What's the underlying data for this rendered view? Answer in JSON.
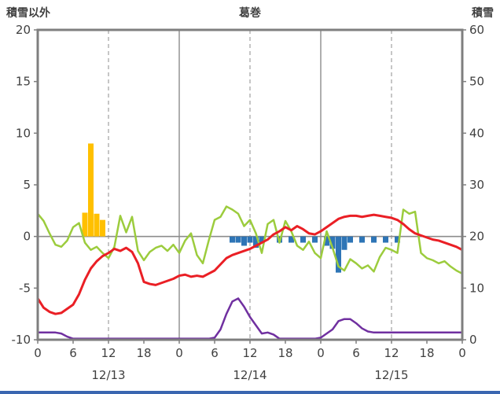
{
  "header": {
    "left_caption": "積雪以外",
    "title": "葛巻",
    "right_caption": "積雪"
  },
  "colors": {
    "frame": "#7f7f7f",
    "grid": "#8c8c8c",
    "text": "#404040",
    "red": "#ea1f25",
    "green": "#9ccc3d",
    "yellow": "#ffc000",
    "blue": "#2e75b6",
    "purple": "#7030a0",
    "bottom_strip": "#3a66b0"
  },
  "chart_data": {
    "type": "line",
    "title": "葛巻",
    "x_hours_span": 72,
    "hour_ticks": [
      {
        "t": 0,
        "label": "0"
      },
      {
        "t": 6,
        "label": "6"
      },
      {
        "t": 12,
        "label": "12"
      },
      {
        "t": 18,
        "label": "18"
      },
      {
        "t": 24,
        "label": "0"
      },
      {
        "t": 30,
        "label": "6"
      },
      {
        "t": 36,
        "label": "12"
      },
      {
        "t": 42,
        "label": "18"
      },
      {
        "t": 48,
        "label": "0"
      },
      {
        "t": 54,
        "label": "6"
      },
      {
        "t": 60,
        "label": "12"
      },
      {
        "t": 66,
        "label": "18"
      },
      {
        "t": 72,
        "label": "0"
      }
    ],
    "date_labels": [
      {
        "t": 12,
        "label": "12/13"
      },
      {
        "t": 36,
        "label": "12/14"
      },
      {
        "t": 60,
        "label": "12/15"
      }
    ],
    "left_axis": {
      "caption": "積雪以外",
      "min": -10,
      "max": 20,
      "ticks": [
        20,
        15,
        10,
        5,
        0,
        -5,
        -10
      ]
    },
    "right_axis": {
      "caption": "積雪",
      "min": 0,
      "max": 60,
      "ticks": [
        60,
        50,
        40,
        30,
        20,
        10,
        0
      ]
    },
    "gridlines": {
      "vertical_solid_hours": [
        24,
        48
      ],
      "vertical_dashed_hours": [
        12,
        36,
        60
      ],
      "horizontal_solid_values": [
        0
      ]
    },
    "series": [
      {
        "name": "yellow-bars",
        "type": "bar",
        "color_key": "yellow",
        "axis": "left",
        "points": [
          [
            8,
            2.3
          ],
          [
            9,
            9.0
          ],
          [
            10,
            2.2
          ],
          [
            11,
            1.6
          ]
        ]
      },
      {
        "name": "blue-bars",
        "type": "bar",
        "color_key": "blue",
        "axis": "left",
        "points": [
          [
            33,
            -0.6
          ],
          [
            34,
            -0.6
          ],
          [
            35,
            -0.9
          ],
          [
            36,
            -0.6
          ],
          [
            37,
            -1.1
          ],
          [
            38,
            -0.6
          ],
          [
            41,
            -0.6
          ],
          [
            43,
            -0.6
          ],
          [
            45,
            -0.6
          ],
          [
            47,
            -0.6
          ],
          [
            49,
            -0.9
          ],
          [
            50,
            -1.2
          ],
          [
            51,
            -3.5
          ],
          [
            52,
            -1.3
          ],
          [
            53,
            -0.6
          ],
          [
            55,
            -0.6
          ],
          [
            57,
            -0.6
          ],
          [
            59,
            -0.6
          ],
          [
            61,
            -0.6
          ]
        ]
      },
      {
        "name": "green-line",
        "type": "line",
        "color_key": "green",
        "axis": "left",
        "start_hour": 0,
        "step_hours": 1,
        "values": [
          2.2,
          1.5,
          0.3,
          -0.8,
          -1.0,
          -0.4,
          0.9,
          1.3,
          -0.6,
          -1.3,
          -1.0,
          -1.6,
          -2.1,
          -1.0,
          2.0,
          0.4,
          1.9,
          -1.4,
          -2.3,
          -1.5,
          -1.1,
          -0.9,
          -1.4,
          -0.8,
          -1.6,
          -0.4,
          0.3,
          -1.8,
          -2.6,
          -0.4,
          1.6,
          1.9,
          2.9,
          2.6,
          2.2,
          1.0,
          1.6,
          0.3,
          -1.6,
          1.2,
          1.6,
          -0.6,
          1.5,
          0.5,
          -0.9,
          -1.3,
          -0.5,
          -1.6,
          -2.1,
          0.5,
          -1.1,
          -2.9,
          -3.3,
          -2.2,
          -2.6,
          -3.1,
          -2.8,
          -3.4,
          -2.0,
          -1.1,
          -1.3,
          -1.6,
          2.6,
          2.2,
          2.4,
          -1.6,
          -2.1,
          -2.3,
          -2.6,
          -2.4,
          -2.9,
          -3.3,
          -3.6
        ]
      },
      {
        "name": "red-line",
        "type": "line",
        "color_key": "red",
        "axis": "left",
        "start_hour": 0,
        "step_hours": 1,
        "values": [
          -6.0,
          -6.9,
          -7.3,
          -7.5,
          -7.4,
          -7.0,
          -6.6,
          -5.6,
          -4.2,
          -3.1,
          -2.4,
          -1.9,
          -1.6,
          -1.2,
          -1.4,
          -1.1,
          -1.5,
          -2.6,
          -4.4,
          -4.6,
          -4.7,
          -4.5,
          -4.3,
          -4.1,
          -3.8,
          -3.7,
          -3.9,
          -3.8,
          -3.9,
          -3.6,
          -3.3,
          -2.7,
          -2.1,
          -1.8,
          -1.6,
          -1.4,
          -1.2,
          -0.9,
          -0.6,
          -0.3,
          0.2,
          0.5,
          0.9,
          0.6,
          1.0,
          0.7,
          0.3,
          0.2,
          0.5,
          0.9,
          1.3,
          1.7,
          1.9,
          2.0,
          2.0,
          1.9,
          2.0,
          2.1,
          2.0,
          1.9,
          1.8,
          1.6,
          1.2,
          0.7,
          0.3,
          0.1,
          -0.1,
          -0.3,
          -0.4,
          -0.6,
          -0.8,
          -1.0,
          -1.3
        ]
      },
      {
        "name": "purple-line",
        "type": "line",
        "color_key": "purple",
        "axis": "left",
        "start_hour": 0,
        "step_hours": 1,
        "values": [
          -9.3,
          -9.3,
          -9.3,
          -9.3,
          -9.4,
          -9.7,
          -9.9,
          -9.9,
          -9.9,
          -9.9,
          -9.9,
          -9.9,
          -9.9,
          -9.9,
          -9.9,
          -9.9,
          -9.9,
          -9.9,
          -9.9,
          -9.9,
          -9.9,
          -9.9,
          -9.9,
          -9.9,
          -9.9,
          -9.9,
          -9.9,
          -9.9,
          -9.9,
          -9.9,
          -9.8,
          -9.0,
          -7.5,
          -6.3,
          -6.0,
          -6.8,
          -7.8,
          -8.6,
          -9.4,
          -9.3,
          -9.5,
          -9.9,
          -9.9,
          -9.9,
          -9.9,
          -9.9,
          -9.9,
          -9.9,
          -9.8,
          -9.4,
          -9.0,
          -8.2,
          -8.0,
          -8.0,
          -8.4,
          -8.9,
          -9.2,
          -9.3,
          -9.3,
          -9.3,
          -9.3,
          -9.3,
          -9.3,
          -9.3,
          -9.3,
          -9.3,
          -9.3,
          -9.3,
          -9.3,
          -9.3,
          -9.3,
          -9.3,
          -9.3
        ]
      }
    ]
  }
}
